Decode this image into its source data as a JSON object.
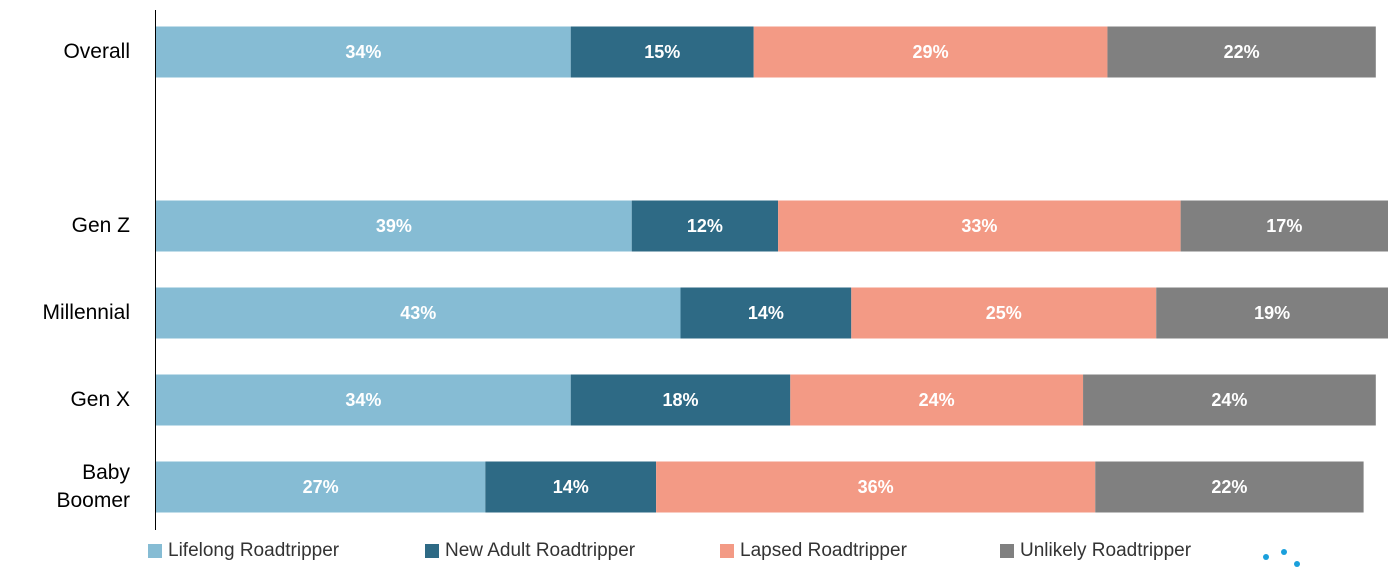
{
  "chart_data": {
    "type": "stacked-bar-horizontal",
    "categories": [
      "Overall",
      null,
      "Gen Z",
      "Millennial",
      "Gen X",
      "Baby Boomer"
    ],
    "series": [
      {
        "name": "Lifelong Roadtripper",
        "color": "#86bcd4",
        "values": [
          34,
          null,
          39,
          43,
          34,
          27
        ],
        "value_labels": [
          "34%",
          null,
          "39%",
          "43%",
          "34%",
          "27%"
        ]
      },
      {
        "name": "New Adult Roadtripper",
        "color": "#2e6a85",
        "values": [
          15,
          null,
          12,
          14,
          18,
          14
        ],
        "value_labels": [
          "15%",
          null,
          "12%",
          "14%",
          "18%",
          "14%"
        ]
      },
      {
        "name": "Lapsed Roadtripper",
        "color": "#f39a85",
        "values": [
          29,
          null,
          33,
          25,
          24,
          36
        ],
        "value_labels": [
          "29%",
          null,
          "33%",
          "25%",
          "24%",
          "36%"
        ]
      },
      {
        "name": "Unlikely Roadtripper",
        "color": "#808080",
        "values": [
          22,
          null,
          17,
          19,
          24,
          22
        ],
        "value_labels": [
          "22%",
          null,
          "17%",
          "19%",
          "24%",
          "22%"
        ]
      }
    ],
    "xlim": [
      0,
      101
    ],
    "legend": "bottom"
  }
}
